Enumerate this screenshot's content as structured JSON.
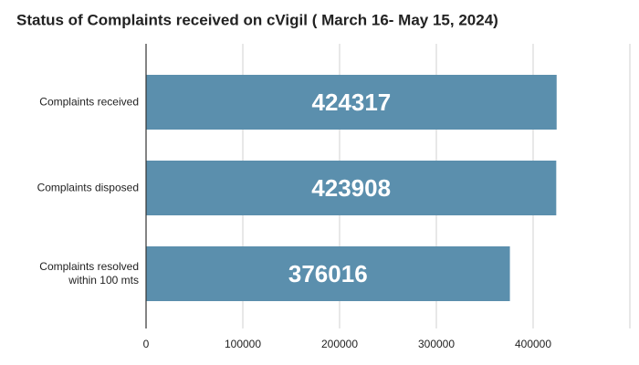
{
  "chart_data": {
    "type": "bar",
    "orientation": "horizontal",
    "title": "Status of Complaints received on cVigil ( March 16- May 15, 2024)",
    "categories": [
      "Complaints received",
      "Complaints disposed",
      "Complaints resolved within 100 mts"
    ],
    "values": [
      424317,
      423908,
      376016
    ],
    "color": "#5b8fad",
    "xlim": [
      0,
      500000
    ],
    "xticks": [
      0,
      100000,
      200000,
      300000,
      400000
    ],
    "grid": true
  }
}
